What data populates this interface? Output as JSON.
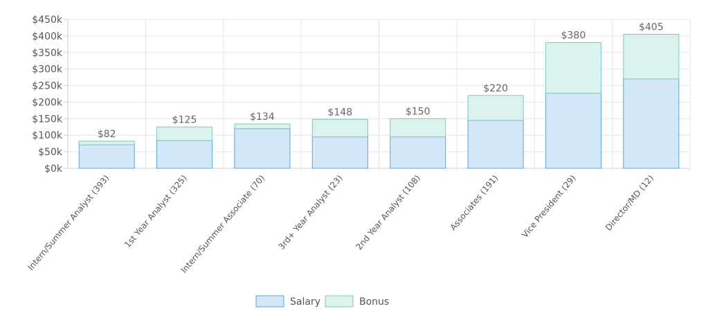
{
  "chart_data": {
    "type": "bar",
    "stacked": true,
    "categories": [
      "Intern/Summer Analyst (393)",
      "1st Year Analyst (325)",
      "Intern/Summer Associate (70)",
      "3rd+ Year Analyst (23)",
      "2nd Year Analyst (108)",
      "Associates (191)",
      "Vice President (29)",
      "Director/MD (12)"
    ],
    "series": [
      {
        "name": "Salary",
        "values": [
          71,
          84,
          120,
          95,
          95,
          145,
          227,
          270
        ],
        "color": "#d3e7f8",
        "stroke": "#5aa6d6"
      },
      {
        "name": "Bonus",
        "values": [
          11,
          41,
          14,
          53,
          55,
          75,
          153,
          135
        ],
        "color": "#dcf2ee",
        "stroke": "#7fc6bd"
      }
    ],
    "totals": [
      82,
      125,
      134,
      148,
      150,
      220,
      380,
      405
    ],
    "total_labels": [
      "$82",
      "$125",
      "$134",
      "$148",
      "$150",
      "$220",
      "$380",
      "$405"
    ],
    "y_ticks": [
      0,
      50,
      100,
      150,
      200,
      250,
      300,
      350,
      400,
      450
    ],
    "y_tick_labels": [
      "$0k",
      "$50k",
      "$100k",
      "$150k",
      "$200k",
      "$250k",
      "$300k",
      "$350k",
      "$400k",
      "$450k"
    ],
    "ylim": [
      0,
      450
    ],
    "grid": true,
    "legend": {
      "position": "bottom-center",
      "items": [
        "Salary",
        "Bonus"
      ]
    },
    "title": "",
    "xlabel": "",
    "ylabel": ""
  }
}
